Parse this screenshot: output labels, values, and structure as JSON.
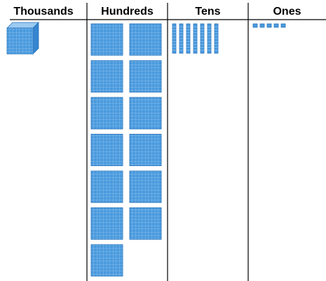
{
  "columns": [
    {
      "key": "thousands",
      "label": "Thousands",
      "count": 1
    },
    {
      "key": "hundreds",
      "label": "Hundreds",
      "count": 13
    },
    {
      "key": "tens",
      "label": "Tens",
      "count": 7
    },
    {
      "key": "ones",
      "label": "Ones",
      "count": 5
    }
  ],
  "colors": {
    "block_fill": "#4a9ade",
    "block_light": "#9ccaf0",
    "block_dark": "#2b76bd",
    "block_side": "#3585cf",
    "rule": "#000000"
  }
}
